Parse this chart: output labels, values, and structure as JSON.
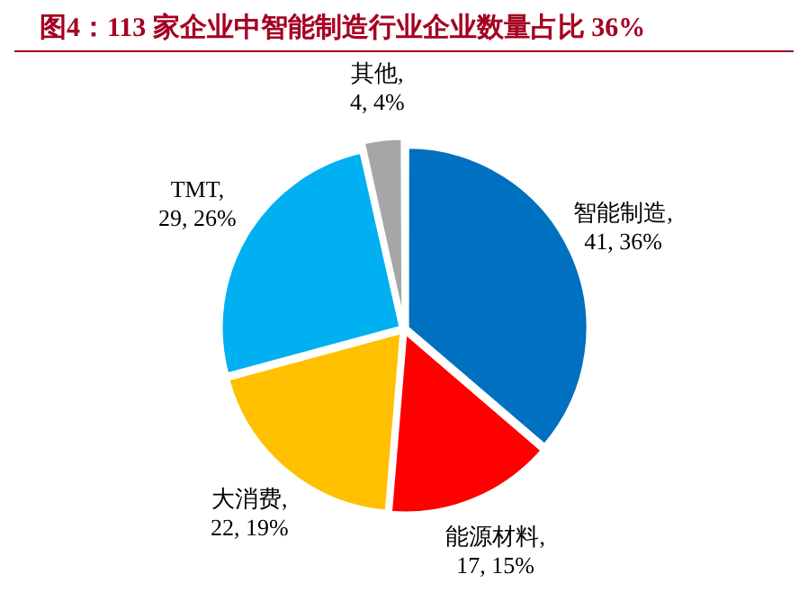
{
  "chart_data": {
    "type": "pie",
    "title": "图4：113 家企业中智能制造行业企业数量占比 36%",
    "categories": [
      "智能制造",
      "能源材料",
      "大消费",
      "TMT",
      "其他"
    ],
    "values": [
      41,
      17,
      22,
      29,
      4
    ],
    "value_labels": [
      ", 41, 36%",
      ", 17, 15%",
      ", 22, 19%",
      ", 29, 26%",
      ", 4, 4%"
    ],
    "colors": [
      "#0070c0",
      "#ff0000",
      "#ffc000",
      "#00b0f0",
      "#a6a6a6"
    ],
    "legend": false
  }
}
